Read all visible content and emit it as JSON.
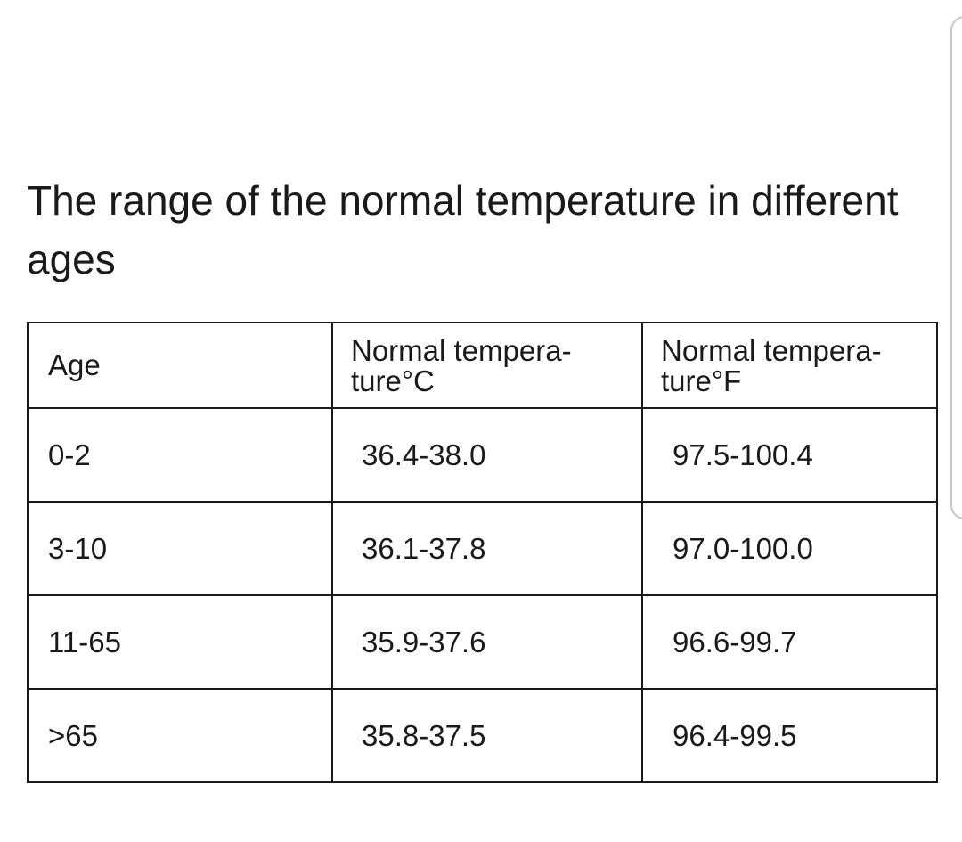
{
  "title": "The range of the normal temperature in different ages",
  "table": {
    "headers": [
      "Age",
      "Normal tempera- ture°C",
      "Normal tempera- ture°F"
    ],
    "rows": [
      [
        "0-2",
        "36.4-38.0",
        "97.5-100.4"
      ],
      [
        "3-10",
        "36.1-37.8",
        "97.0-100.0"
      ],
      [
        "11-65",
        "35.9-37.6",
        "96.6-99.7"
      ],
      [
        ">65",
        "35.8-37.5",
        "96.4-99.5"
      ]
    ]
  },
  "colors": {
    "text": "#1a1a1a",
    "border": "#1a1a1a",
    "background": "#ffffff",
    "scroll_hint_border": "#c8c8c8"
  }
}
